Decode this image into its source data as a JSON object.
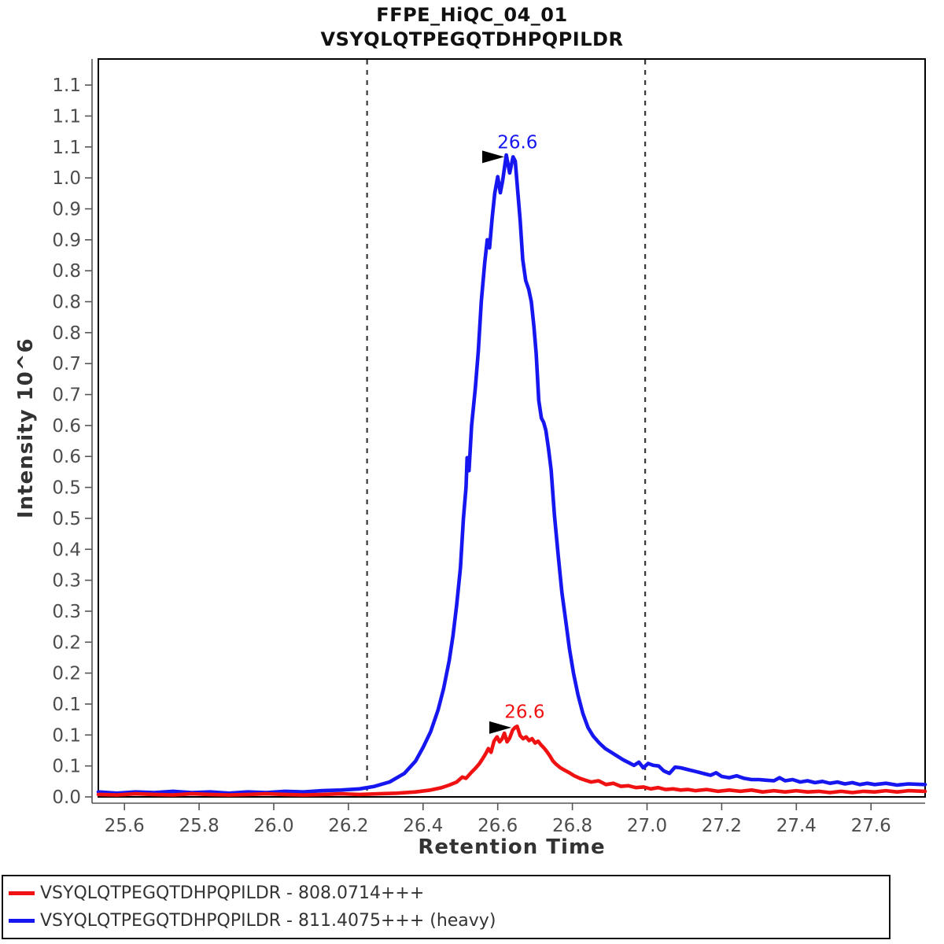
{
  "title": {
    "line1": "FFPE_HiQC_04_01",
    "line2": "VSYQLQTPEGQTDHPQPILDR"
  },
  "axes": {
    "x": {
      "label": "Retention Time",
      "ticks": [
        {
          "value": 25.6,
          "label": "25.6"
        },
        {
          "value": 25.8,
          "label": "25.8"
        },
        {
          "value": 26.0,
          "label": "26.0"
        },
        {
          "value": 26.2,
          "label": "26.2"
        },
        {
          "value": 26.4,
          "label": "26.4"
        },
        {
          "value": 26.6,
          "label": "26.6"
        },
        {
          "value": 26.8,
          "label": "26.8"
        },
        {
          "value": 27.0,
          "label": "27.0"
        },
        {
          "value": 27.2,
          "label": "27.2"
        },
        {
          "value": 27.4,
          "label": "27.4"
        },
        {
          "value": 27.6,
          "label": "27.6"
        }
      ]
    },
    "y": {
      "label": "Intensity 10^6",
      "ticks": [
        {
          "value": 0.0,
          "label": "0.0"
        },
        {
          "value": 0.05,
          "label": "0.1"
        },
        {
          "value": 0.1,
          "label": "0.1"
        },
        {
          "value": 0.15,
          "label": "0.1"
        },
        {
          "value": 0.2,
          "label": "0.2"
        },
        {
          "value": 0.25,
          "label": "0.2"
        },
        {
          "value": 0.3,
          "label": "0.3"
        },
        {
          "value": 0.35,
          "label": "0.3"
        },
        {
          "value": 0.4,
          "label": "0.4"
        },
        {
          "value": 0.45,
          "label": "0.5"
        },
        {
          "value": 0.5,
          "label": "0.5"
        },
        {
          "value": 0.55,
          "label": "0.6"
        },
        {
          "value": 0.6,
          "label": "0.6"
        },
        {
          "value": 0.65,
          "label": "0.7"
        },
        {
          "value": 0.7,
          "label": "0.7"
        },
        {
          "value": 0.75,
          "label": "0.8"
        },
        {
          "value": 0.8,
          "label": "0.8"
        },
        {
          "value": 0.85,
          "label": "0.8"
        },
        {
          "value": 0.9,
          "label": "0.9"
        },
        {
          "value": 0.95,
          "label": "0.9"
        },
        {
          "value": 1.0,
          "label": "1.0"
        },
        {
          "value": 1.05,
          "label": "1.1"
        },
        {
          "value": 1.1,
          "label": "1.1"
        },
        {
          "value": 1.15,
          "label": "1.1"
        }
      ]
    }
  },
  "legend": {
    "items": [
      {
        "color": "#f01212",
        "label": "VSYQLQTPEGQTDHPQPILDR - 808.0714+++"
      },
      {
        "color": "#1616f0",
        "label": "VSYQLQTPEGQTDHPQPILDR - 811.4075+++ (heavy)"
      }
    ]
  },
  "chart_data": {
    "type": "line",
    "title": "FFPE_HiQC_04_01",
    "subtitle": "VSYQLQTPEGQTDHPQPILDR",
    "xlabel": "Retention Time",
    "ylabel": "Intensity 10^6",
    "xlim": [
      25.53,
      27.745
    ],
    "ylim": [
      0,
      1.1921
    ],
    "grid": false,
    "legend_position": "bottom",
    "integration_boundaries": [
      26.25,
      26.995
    ],
    "boundary_style": {
      "color": "#383838",
      "dash": "6 7",
      "width": 2.2
    },
    "annotations": [
      {
        "series": "heavy",
        "label": "26.6",
        "color": "#1616f0",
        "text_t": 26.653,
        "text_v": 1.058,
        "arrow_t": 26.588,
        "arrow_v": 1.034
      },
      {
        "series": "light",
        "label": "26.6",
        "color": "#f01212",
        "text_t": 26.672,
        "text_v": 0.138,
        "arrow_t": 26.607,
        "arrow_v": 0.112
      }
    ],
    "draw_order": [
      "heavy",
      "light"
    ],
    "series": [
      {
        "id": "heavy",
        "name": "VSYQLQTPEGQTDHPQPILDR - 811.4075+++ (heavy)",
        "color": "#1616f0",
        "rt_apex": 26.6,
        "points": [
          [
            25.53,
            0.008
          ],
          [
            25.58,
            0.006
          ],
          [
            25.63,
            0.008
          ],
          [
            25.68,
            0.007
          ],
          [
            25.73,
            0.009
          ],
          [
            25.78,
            0.007
          ],
          [
            25.83,
            0.008
          ],
          [
            25.88,
            0.006
          ],
          [
            25.93,
            0.008
          ],
          [
            25.98,
            0.007
          ],
          [
            26.03,
            0.009
          ],
          [
            26.08,
            0.008
          ],
          [
            26.13,
            0.01
          ],
          [
            26.18,
            0.011
          ],
          [
            26.23,
            0.013
          ],
          [
            26.27,
            0.017
          ],
          [
            26.31,
            0.024
          ],
          [
            26.35,
            0.038
          ],
          [
            26.38,
            0.058
          ],
          [
            26.4,
            0.08
          ],
          [
            26.42,
            0.105
          ],
          [
            26.44,
            0.14
          ],
          [
            26.455,
            0.175
          ],
          [
            26.47,
            0.22
          ],
          [
            26.48,
            0.26
          ],
          [
            26.49,
            0.31
          ],
          [
            26.5,
            0.37
          ],
          [
            26.508,
            0.45
          ],
          [
            26.515,
            0.5
          ],
          [
            26.518,
            0.548
          ],
          [
            26.523,
            0.527
          ],
          [
            26.53,
            0.6
          ],
          [
            26.54,
            0.66
          ],
          [
            26.548,
            0.72
          ],
          [
            26.556,
            0.8
          ],
          [
            26.565,
            0.862
          ],
          [
            26.572,
            0.9
          ],
          [
            26.578,
            0.887
          ],
          [
            26.585,
            0.935
          ],
          [
            26.592,
            0.975
          ],
          [
            26.6,
            1.002
          ],
          [
            26.607,
            0.976
          ],
          [
            26.613,
            0.995
          ],
          [
            26.623,
            1.037
          ],
          [
            26.632,
            1.008
          ],
          [
            26.641,
            1.034
          ],
          [
            26.647,
            1.027
          ],
          [
            26.653,
            0.982
          ],
          [
            26.66,
            0.932
          ],
          [
            26.667,
            0.868
          ],
          [
            26.675,
            0.834
          ],
          [
            26.683,
            0.82
          ],
          [
            26.69,
            0.8
          ],
          [
            26.697,
            0.76
          ],
          [
            26.703,
            0.716
          ],
          [
            26.71,
            0.64
          ],
          [
            26.717,
            0.612
          ],
          [
            26.723,
            0.605
          ],
          [
            26.729,
            0.592
          ],
          [
            26.736,
            0.563
          ],
          [
            26.743,
            0.528
          ],
          [
            26.752,
            0.455
          ],
          [
            26.762,
            0.39
          ],
          [
            26.772,
            0.33
          ],
          [
            26.782,
            0.285
          ],
          [
            26.792,
            0.24
          ],
          [
            26.803,
            0.2
          ],
          [
            26.815,
            0.165
          ],
          [
            26.828,
            0.135
          ],
          [
            26.842,
            0.112
          ],
          [
            26.856,
            0.098
          ],
          [
            26.872,
            0.087
          ],
          [
            26.888,
            0.078
          ],
          [
            26.904,
            0.072
          ],
          [
            26.92,
            0.066
          ],
          [
            26.936,
            0.06
          ],
          [
            26.952,
            0.055
          ],
          [
            26.965,
            0.051
          ],
          [
            26.978,
            0.056
          ],
          [
            26.99,
            0.047
          ],
          [
            27.003,
            0.054
          ],
          [
            27.017,
            0.051
          ],
          [
            27.031,
            0.05
          ],
          [
            27.045,
            0.042
          ],
          [
            27.06,
            0.038
          ],
          [
            27.075,
            0.048
          ],
          [
            27.09,
            0.047
          ],
          [
            27.11,
            0.044
          ],
          [
            27.13,
            0.041
          ],
          [
            27.15,
            0.038
          ],
          [
            27.17,
            0.035
          ],
          [
            27.185,
            0.039
          ],
          [
            27.2,
            0.033
          ],
          [
            27.22,
            0.031
          ],
          [
            27.24,
            0.034
          ],
          [
            27.26,
            0.03
          ],
          [
            27.28,
            0.028
          ],
          [
            27.3,
            0.028
          ],
          [
            27.32,
            0.027
          ],
          [
            27.34,
            0.026
          ],
          [
            27.355,
            0.031
          ],
          [
            27.37,
            0.026
          ],
          [
            27.39,
            0.028
          ],
          [
            27.41,
            0.024
          ],
          [
            27.43,
            0.026
          ],
          [
            27.45,
            0.023
          ],
          [
            27.47,
            0.025
          ],
          [
            27.49,
            0.022
          ],
          [
            27.51,
            0.024
          ],
          [
            27.53,
            0.021
          ],
          [
            27.55,
            0.023
          ],
          [
            27.57,
            0.02
          ],
          [
            27.59,
            0.022
          ],
          [
            27.61,
            0.02
          ],
          [
            27.64,
            0.022
          ],
          [
            27.67,
            0.019
          ],
          [
            27.7,
            0.021
          ],
          [
            27.745,
            0.02
          ]
        ]
      },
      {
        "id": "light",
        "name": "VSYQLQTPEGQTDHPQPILDR - 808.0714+++",
        "color": "#f01212",
        "rt_apex": 26.6,
        "points": [
          [
            25.53,
            0.004
          ],
          [
            25.58,
            0.003
          ],
          [
            25.63,
            0.005
          ],
          [
            25.68,
            0.004
          ],
          [
            25.73,
            0.003
          ],
          [
            25.78,
            0.005
          ],
          [
            25.83,
            0.004
          ],
          [
            25.88,
            0.003
          ],
          [
            25.93,
            0.004
          ],
          [
            25.98,
            0.005
          ],
          [
            26.03,
            0.004
          ],
          [
            26.08,
            0.003
          ],
          [
            26.13,
            0.004
          ],
          [
            26.18,
            0.005
          ],
          [
            26.23,
            0.004
          ],
          [
            26.28,
            0.005
          ],
          [
            26.33,
            0.006
          ],
          [
            26.38,
            0.008
          ],
          [
            26.42,
            0.011
          ],
          [
            26.45,
            0.015
          ],
          [
            26.47,
            0.019
          ],
          [
            26.49,
            0.024
          ],
          [
            26.505,
            0.032
          ],
          [
            26.515,
            0.03
          ],
          [
            26.53,
            0.04
          ],
          [
            26.54,
            0.046
          ],
          [
            26.55,
            0.053
          ],
          [
            26.56,
            0.062
          ],
          [
            26.568,
            0.07
          ],
          [
            26.575,
            0.078
          ],
          [
            26.582,
            0.072
          ],
          [
            26.59,
            0.09
          ],
          [
            26.598,
            0.097
          ],
          [
            26.605,
            0.089
          ],
          [
            26.612,
            0.094
          ],
          [
            26.618,
            0.103
          ],
          [
            26.625,
            0.089
          ],
          [
            26.632,
            0.095
          ],
          [
            26.64,
            0.108
          ],
          [
            26.646,
            0.112
          ],
          [
            26.652,
            0.114
          ],
          [
            26.66,
            0.099
          ],
          [
            26.668,
            0.094
          ],
          [
            26.676,
            0.097
          ],
          [
            26.684,
            0.091
          ],
          [
            26.692,
            0.094
          ],
          [
            26.7,
            0.087
          ],
          [
            26.708,
            0.09
          ],
          [
            26.716,
            0.084
          ],
          [
            26.724,
            0.079
          ],
          [
            26.732,
            0.073
          ],
          [
            26.74,
            0.066
          ],
          [
            26.748,
            0.058
          ],
          [
            26.756,
            0.053
          ],
          [
            26.768,
            0.047
          ],
          [
            26.78,
            0.043
          ],
          [
            26.792,
            0.039
          ],
          [
            26.805,
            0.034
          ],
          [
            26.82,
            0.03
          ],
          [
            26.835,
            0.027
          ],
          [
            26.85,
            0.024
          ],
          [
            26.87,
            0.026
          ],
          [
            26.89,
            0.02
          ],
          [
            26.91,
            0.022
          ],
          [
            26.93,
            0.017
          ],
          [
            26.95,
            0.018
          ],
          [
            26.97,
            0.015
          ],
          [
            26.99,
            0.016
          ],
          [
            27.01,
            0.013
          ],
          [
            27.03,
            0.015
          ],
          [
            27.05,
            0.012
          ],
          [
            27.07,
            0.013
          ],
          [
            27.09,
            0.011
          ],
          [
            27.11,
            0.012
          ],
          [
            27.13,
            0.01
          ],
          [
            27.16,
            0.012
          ],
          [
            27.19,
            0.009
          ],
          [
            27.22,
            0.011
          ],
          [
            27.25,
            0.009
          ],
          [
            27.28,
            0.011
          ],
          [
            27.31,
            0.008
          ],
          [
            27.34,
            0.01
          ],
          [
            27.37,
            0.008
          ],
          [
            27.4,
            0.01
          ],
          [
            27.43,
            0.008
          ],
          [
            27.46,
            0.009
          ],
          [
            27.49,
            0.007
          ],
          [
            27.52,
            0.009
          ],
          [
            27.55,
            0.007
          ],
          [
            27.58,
            0.009
          ],
          [
            27.61,
            0.008
          ],
          [
            27.64,
            0.01
          ],
          [
            27.67,
            0.008
          ],
          [
            27.7,
            0.01
          ],
          [
            27.745,
            0.009
          ]
        ]
      }
    ]
  }
}
